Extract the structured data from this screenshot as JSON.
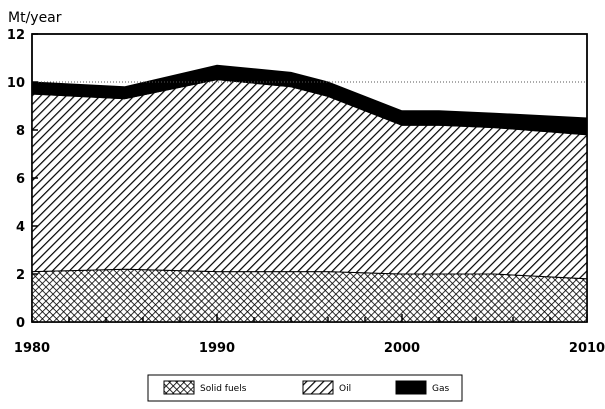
{
  "chart_data": {
    "type": "area",
    "stacked": true,
    "ylabel": "Mt/year",
    "xlabel": "",
    "x": [
      1980,
      1985,
      1990,
      1994,
      1996,
      2000,
      2002,
      2005,
      2010
    ],
    "xlim": [
      1980,
      2010
    ],
    "ylim": [
      0,
      12
    ],
    "x_ticks": [
      "1980",
      "1990",
      "2000",
      "2010"
    ],
    "y_ticks": [
      "0",
      "2",
      "4",
      "6",
      "8",
      "10",
      "12"
    ],
    "reference_line": {
      "y": 10,
      "style": "dotted"
    },
    "legend_position": "bottom",
    "series": [
      {
        "name": "Solid fuels",
        "pattern": "crosshatch",
        "values": [
          2.1,
          2.2,
          2.1,
          2.1,
          2.1,
          2.0,
          2.0,
          2.0,
          1.8
        ]
      },
      {
        "name": "Oil",
        "pattern": "diagonal",
        "values": [
          7.4,
          7.1,
          8.0,
          7.7,
          7.3,
          6.2,
          6.2,
          6.1,
          6.0
        ]
      },
      {
        "name": "Gas",
        "pattern": "solid-black",
        "values": [
          0.5,
          0.5,
          0.6,
          0.6,
          0.6,
          0.6,
          0.6,
          0.6,
          0.7
        ]
      }
    ],
    "colors": {
      "ink": "#000000",
      "background": "#ffffff"
    }
  }
}
